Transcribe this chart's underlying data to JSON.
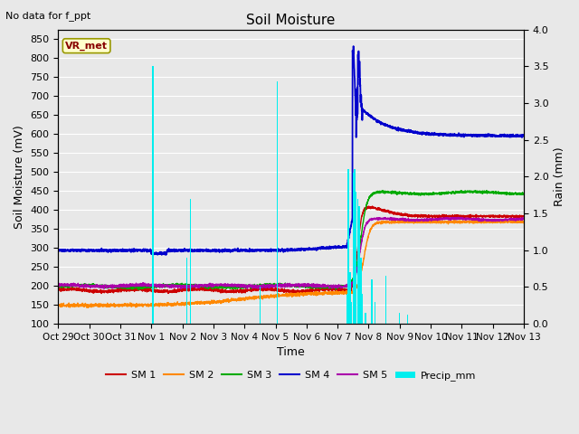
{
  "title": "Soil Moisture",
  "note": "No data for f_ppt",
  "station_label": "VR_met",
  "xlabel": "Time",
  "ylabel_left": "Soil Moisture (mV)",
  "ylabel_right": "Rain (mm)",
  "ylim_left": [
    100,
    875
  ],
  "ylim_right": [
    0.0,
    4.0
  ],
  "yticks_left": [
    100,
    150,
    200,
    250,
    300,
    350,
    400,
    450,
    500,
    550,
    600,
    650,
    700,
    750,
    800,
    850
  ],
  "yticks_right": [
    0.0,
    0.5,
    1.0,
    1.5,
    2.0,
    2.5,
    3.0,
    3.5,
    4.0
  ],
  "xtick_labels": [
    "Oct 29",
    "Oct 30",
    "Oct 31",
    "Nov 1",
    "Nov 2",
    "Nov 3",
    "Nov 4",
    "Nov 5",
    "Nov 6",
    "Nov 7",
    "Nov 8",
    "Nov 9",
    "Nov 10",
    "Nov 11",
    "Nov 12",
    "Nov 13"
  ],
  "colors": {
    "SM1": "#cc0000",
    "SM2": "#ff8800",
    "SM3": "#00aa00",
    "SM4": "#0000cc",
    "SM5": "#aa00aa",
    "precip": "#00eeee",
    "background": "#e8e8e8",
    "grid": "#ffffff"
  },
  "legend_entries": [
    "SM 1",
    "SM 2",
    "SM 3",
    "SM 4",
    "SM 5",
    "Precip_mm"
  ],
  "figsize": [
    6.4,
    4.8
  ],
  "dpi": 100
}
